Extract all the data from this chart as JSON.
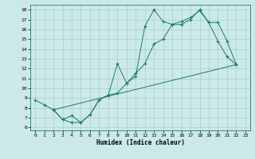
{
  "xlabel": "Humidex (Indice chaleur)",
  "bg_color": "#cce9e9",
  "grid_color": "#aacccc",
  "line_color": "#1a7a6e",
  "xlim": [
    -0.5,
    23.5
  ],
  "ylim": [
    5.7,
    18.5
  ],
  "xticks": [
    0,
    1,
    2,
    3,
    4,
    5,
    6,
    7,
    8,
    9,
    10,
    11,
    12,
    13,
    14,
    15,
    16,
    17,
    18,
    19,
    20,
    21,
    22,
    23
  ],
  "yticks": [
    6,
    7,
    8,
    9,
    10,
    11,
    12,
    13,
    14,
    15,
    16,
    17,
    18
  ],
  "series": [
    {
      "x": [
        0,
        1,
        2,
        3,
        4,
        5,
        6,
        7,
        8,
        9,
        10,
        11,
        12,
        13,
        14,
        15,
        16,
        17,
        18,
        19,
        20,
        21,
        22
      ],
      "y": [
        8.8,
        8.3,
        7.8,
        6.8,
        7.2,
        6.5,
        7.3,
        8.8,
        9.3,
        12.5,
        10.5,
        11.2,
        16.3,
        18.0,
        16.8,
        16.5,
        16.8,
        17.2,
        17.9,
        16.7,
        14.8,
        13.2,
        12.4
      ]
    },
    {
      "x": [
        2,
        3,
        4,
        5,
        6,
        7,
        8,
        9,
        10,
        11,
        12,
        13,
        14,
        15,
        16,
        17,
        18,
        19,
        20,
        21,
        22
      ],
      "y": [
        7.8,
        6.8,
        6.5,
        6.5,
        7.3,
        8.8,
        9.3,
        9.5,
        10.5,
        11.5,
        12.5,
        14.5,
        15.0,
        16.5,
        16.5,
        17.0,
        18.0,
        16.7,
        16.7,
        14.8,
        12.4
      ]
    },
    {
      "x": [
        2,
        22
      ],
      "y": [
        7.8,
        12.4
      ]
    }
  ]
}
